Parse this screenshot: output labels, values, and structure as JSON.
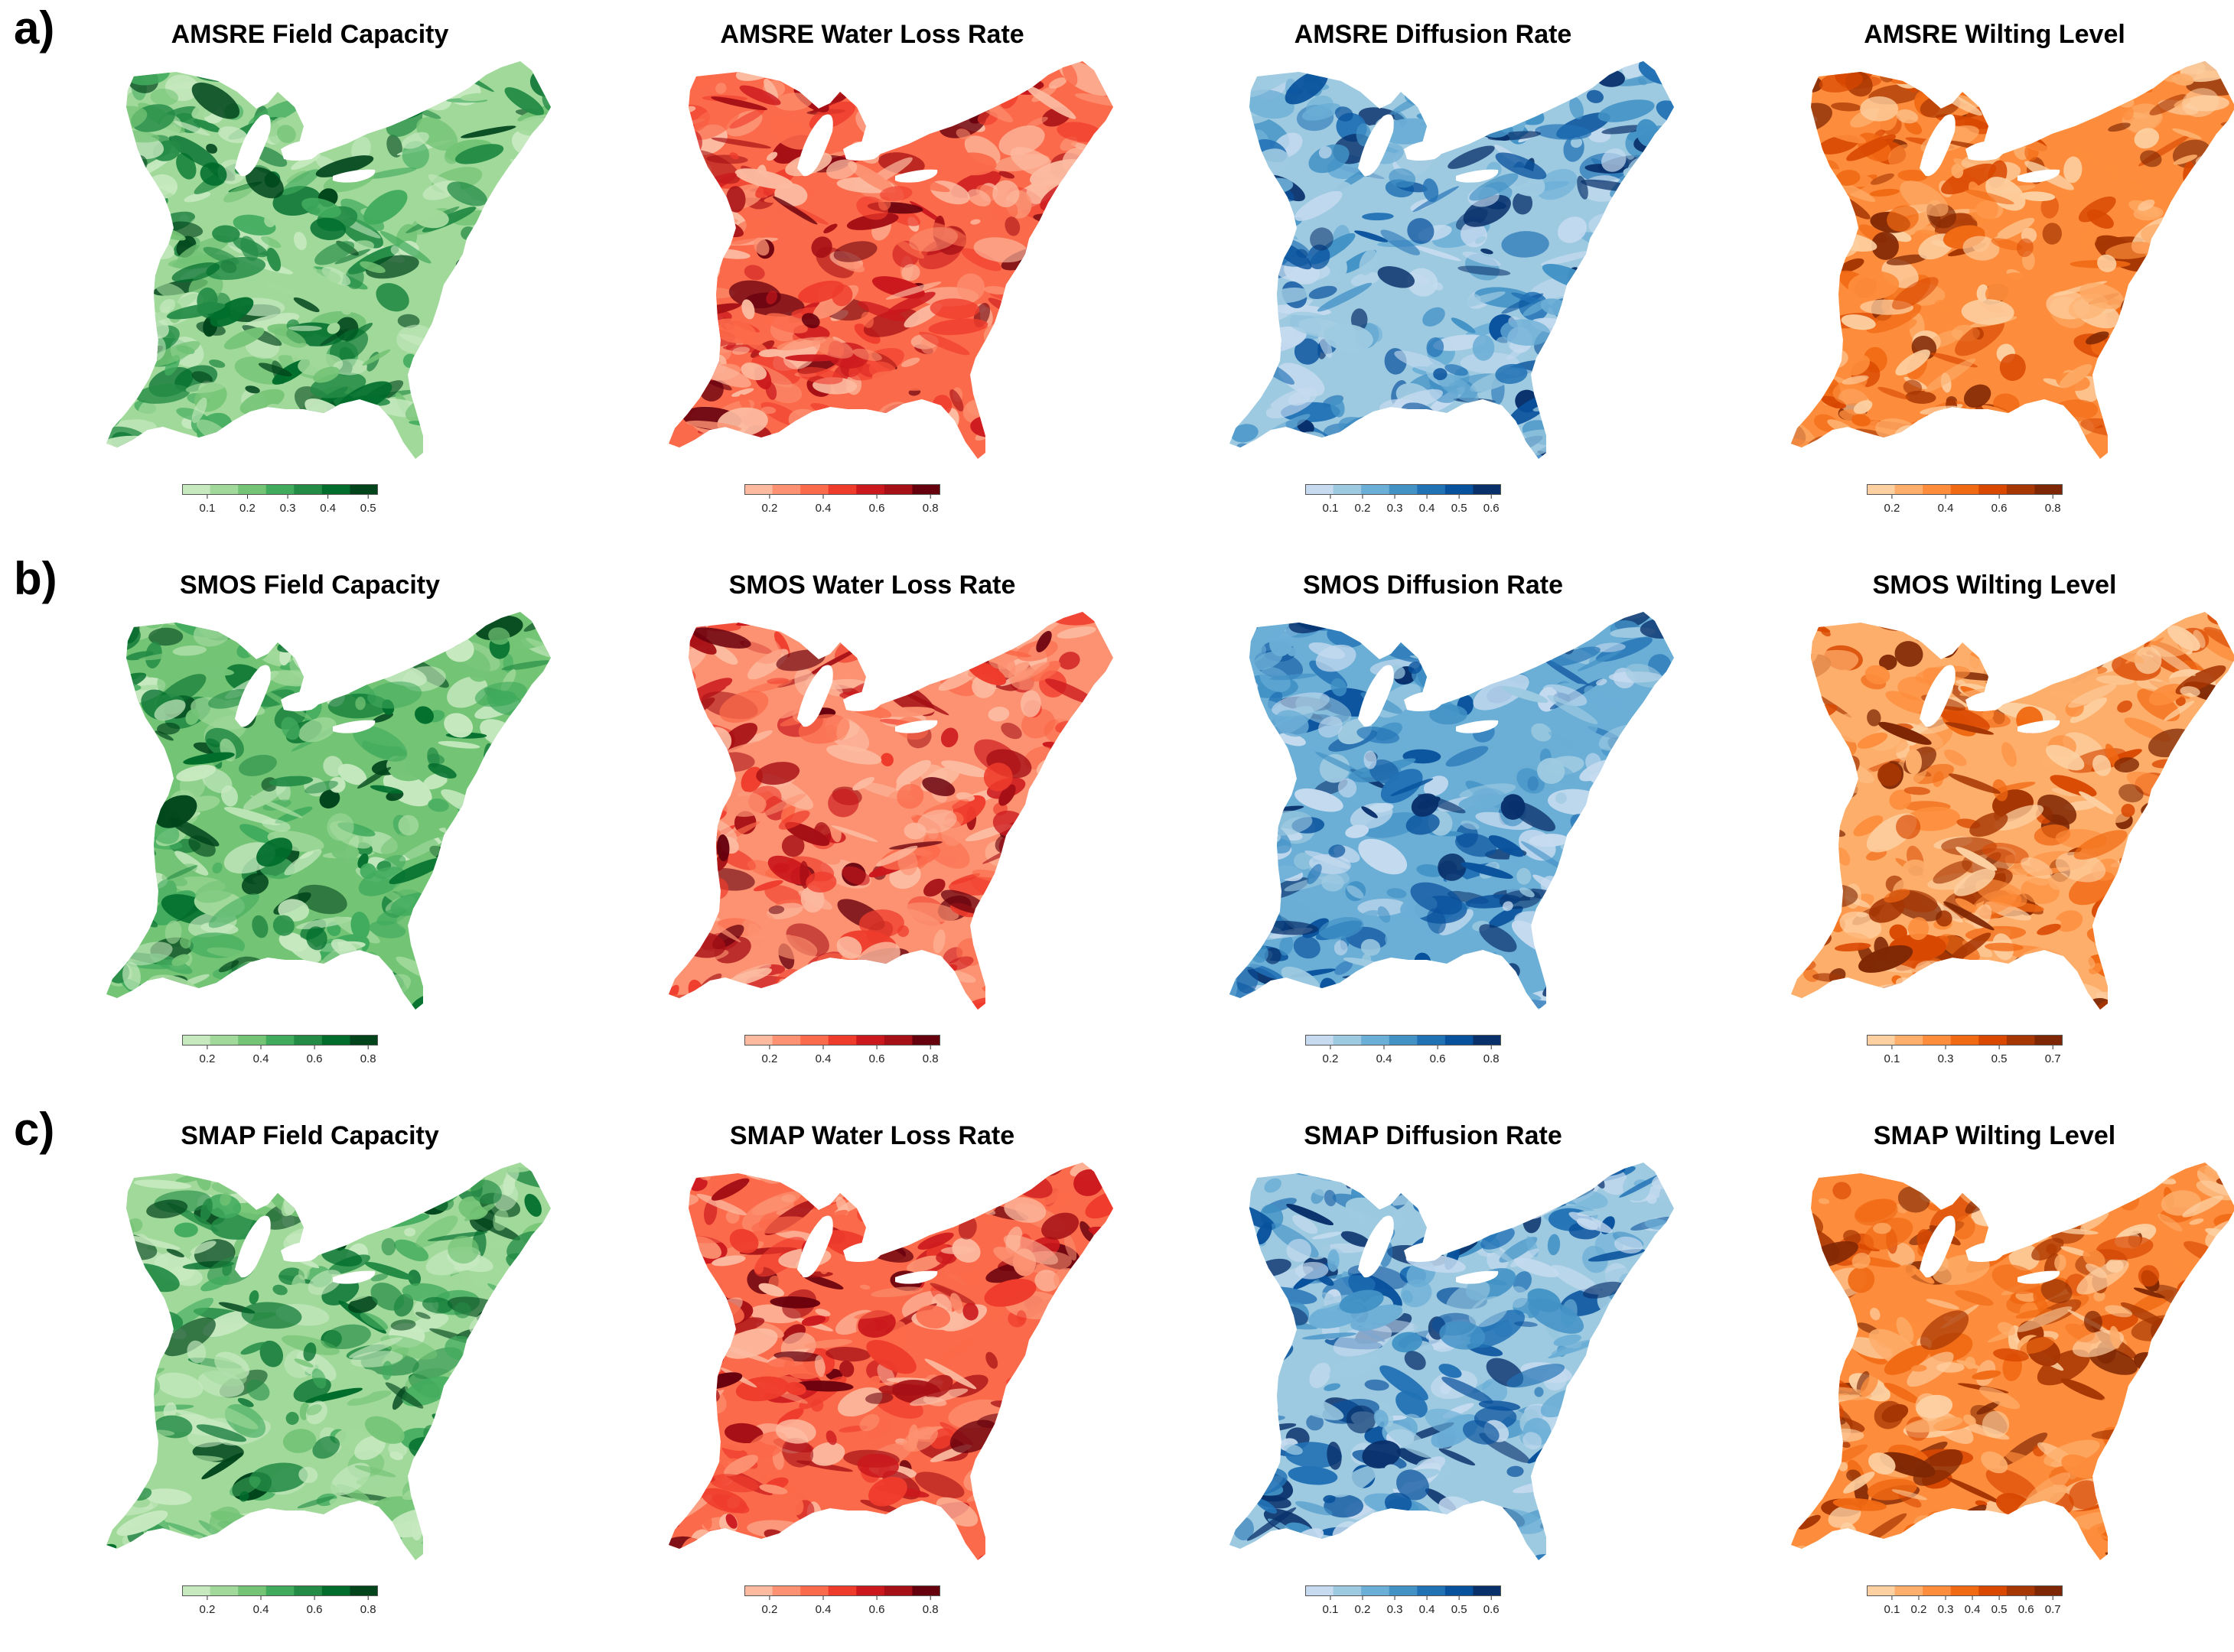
{
  "figure": {
    "rows": [
      {
        "label": "a)",
        "panels": [
          {
            "title": "AMSRE Field Capacity",
            "palette": [
              "#c7e9c0",
              "#a1d99b",
              "#74c476",
              "#41ab5d",
              "#238b45",
              "#006d2c",
              "#00441b"
            ],
            "ticks": [
              "0.1",
              "0.2",
              "0.3",
              "0.4",
              "0.5"
            ]
          },
          {
            "title": "AMSRE Water Loss Rate",
            "palette": [
              "#fcbba1",
              "#fc9272",
              "#fb6a4a",
              "#ef3b2c",
              "#cb181d",
              "#a50f15",
              "#67000d"
            ],
            "ticks": [
              "0.2",
              "0.4",
              "0.6",
              "0.8"
            ]
          },
          {
            "title": "AMSRE Diffusion Rate",
            "palette": [
              "#c6dbef",
              "#9ecae1",
              "#6baed6",
              "#4292c6",
              "#2171b5",
              "#08519c",
              "#08306b"
            ],
            "ticks": [
              "0.1",
              "0.2",
              "0.3",
              "0.4",
              "0.5",
              "0.6"
            ]
          },
          {
            "title": "AMSRE Wilting Level",
            "palette": [
              "#fdd0a2",
              "#fdae6b",
              "#fd8d3c",
              "#f16913",
              "#d94801",
              "#a63603",
              "#7f2704"
            ],
            "ticks": [
              "0.2",
              "0.4",
              "0.6",
              "0.8"
            ]
          }
        ]
      },
      {
        "label": "b)",
        "panels": [
          {
            "title": "SMOS Field Capacity",
            "palette": [
              "#c7e9c0",
              "#a1d99b",
              "#74c476",
              "#41ab5d",
              "#238b45",
              "#006d2c",
              "#00441b"
            ],
            "ticks": [
              "0.2",
              "0.4",
              "0.6",
              "0.8"
            ]
          },
          {
            "title": "SMOS Water Loss Rate",
            "palette": [
              "#fcbba1",
              "#fc9272",
              "#fb6a4a",
              "#ef3b2c",
              "#cb181d",
              "#a50f15",
              "#67000d"
            ],
            "ticks": [
              "0.2",
              "0.4",
              "0.6",
              "0.8"
            ]
          },
          {
            "title": "SMOS Diffusion Rate",
            "palette": [
              "#c6dbef",
              "#9ecae1",
              "#6baed6",
              "#4292c6",
              "#2171b5",
              "#08519c",
              "#08306b"
            ],
            "ticks": [
              "0.2",
              "0.4",
              "0.6",
              "0.8"
            ]
          },
          {
            "title": "SMOS Wilting Level",
            "palette": [
              "#fdd0a2",
              "#fdae6b",
              "#fd8d3c",
              "#f16913",
              "#d94801",
              "#a63603",
              "#7f2704"
            ],
            "ticks": [
              "0.1",
              "0.3",
              "0.5",
              "0.7"
            ]
          }
        ]
      },
      {
        "label": "c)",
        "panels": [
          {
            "title": "SMAP Field Capacity",
            "palette": [
              "#c7e9c0",
              "#a1d99b",
              "#74c476",
              "#41ab5d",
              "#238b45",
              "#006d2c",
              "#00441b"
            ],
            "ticks": [
              "0.2",
              "0.4",
              "0.6",
              "0.8"
            ]
          },
          {
            "title": "SMAP Water Loss Rate",
            "palette": [
              "#fcbba1",
              "#fc9272",
              "#fb6a4a",
              "#ef3b2c",
              "#cb181d",
              "#a50f15",
              "#67000d"
            ],
            "ticks": [
              "0.2",
              "0.4",
              "0.6",
              "0.8"
            ]
          },
          {
            "title": "SMAP Diffusion Rate",
            "palette": [
              "#c6dbef",
              "#9ecae1",
              "#6baed6",
              "#4292c6",
              "#2171b5",
              "#08519c",
              "#08306b"
            ],
            "ticks": [
              "0.1",
              "0.2",
              "0.3",
              "0.4",
              "0.5",
              "0.6"
            ]
          },
          {
            "title": "SMAP Wilting Level",
            "palette": [
              "#fdd0a2",
              "#fdae6b",
              "#fd8d3c",
              "#f16913",
              "#d94801",
              "#a63603",
              "#7f2704"
            ],
            "ticks": [
              "0.1",
              "0.2",
              "0.3",
              "0.4",
              "0.5",
              "0.6",
              "0.7"
            ]
          }
        ]
      }
    ]
  }
}
